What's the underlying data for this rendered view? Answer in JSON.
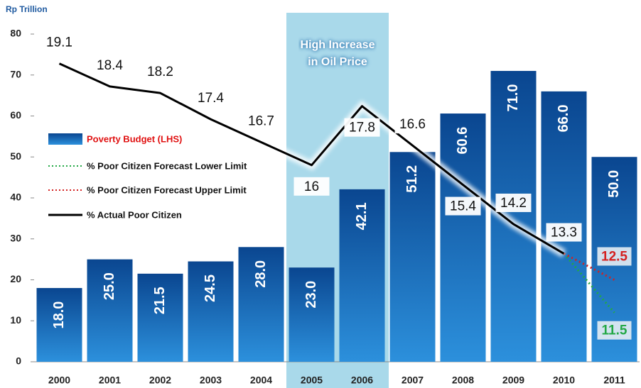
{
  "chart_data": {
    "type": "bar",
    "y_axis_label": "Rp Trillion",
    "annotation": "High Increase in Oil Price",
    "categories": [
      "2000",
      "2001",
      "2002",
      "2003",
      "2004",
      "2005",
      "2006",
      "2007",
      "2008",
      "2009",
      "2010",
      "2011"
    ],
    "ylim": [
      0,
      80
    ],
    "yticks": [
      0,
      10,
      20,
      30,
      40,
      50,
      60,
      70,
      80
    ],
    "y2lim": [
      10,
      20
    ],
    "series": [
      {
        "name": "Poverty Budget (LHS)",
        "type": "bar",
        "color": "#0d5aa7",
        "values": [
          18.0,
          25.0,
          21.5,
          24.5,
          28.0,
          23.0,
          42.1,
          51.2,
          60.6,
          71.0,
          66.0,
          50.0
        ],
        "value_labels": [
          "18.0",
          "25.0",
          "21.5",
          "24.5",
          "28.0",
          "23.0",
          "42.1",
          "51.2",
          "60.6",
          "71.0",
          "66.0",
          "50.0"
        ]
      },
      {
        "name": "% Poor Citizen Forecast Lower Limit",
        "type": "line",
        "axis": "y2",
        "color": "#22a845",
        "dashed": true,
        "values": [
          null,
          null,
          null,
          null,
          null,
          null,
          null,
          null,
          null,
          null,
          13.3,
          11.5
        ]
      },
      {
        "name": "% Poor Citizen Forecast Upper Limit",
        "type": "line",
        "axis": "y2",
        "color": "#d42020",
        "dashed": true,
        "values": [
          null,
          null,
          null,
          null,
          null,
          null,
          null,
          null,
          null,
          null,
          13.3,
          12.5
        ]
      },
      {
        "name": "% Actual Poor Citizen",
        "type": "line",
        "axis": "y2",
        "color": "#000000",
        "values": [
          19.1,
          18.4,
          18.2,
          17.4,
          16.7,
          16.0,
          17.8,
          16.6,
          15.4,
          14.2,
          13.3,
          null
        ]
      }
    ]
  }
}
